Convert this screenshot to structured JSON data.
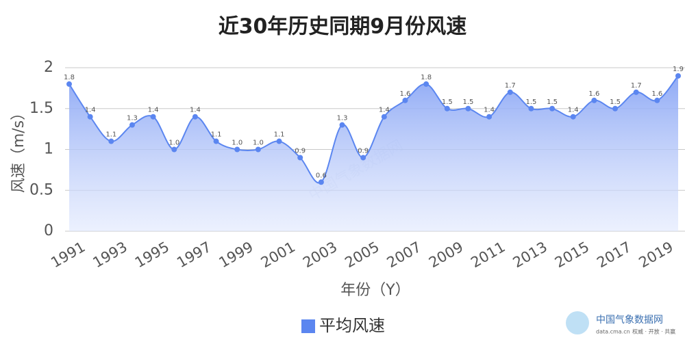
{
  "chart_data": {
    "type": "area-line",
    "title": "近30年历史同期9月份风速",
    "x_label": "年份（Y）",
    "y_label": "风速（m/s）",
    "categories": [
      "1991",
      null,
      "1993",
      null,
      "1995",
      null,
      "1997",
      null,
      "1999",
      null,
      "2001",
      null,
      "2003",
      null,
      "2005",
      null,
      "2007",
      null,
      "2009",
      null,
      "2011",
      null,
      "2013",
      null,
      "2015",
      null,
      "2017",
      null,
      "2019",
      null
    ],
    "series": [
      {
        "name": "平均风速",
        "color": "#5b86f0",
        "values": [
          1.8,
          1.4,
          1.1,
          1.3,
          1.4,
          1.0,
          1.4,
          1.1,
          1.0,
          1.0,
          1.1,
          0.9,
          0.6,
          1.3,
          0.9,
          1.4,
          1.6,
          1.8,
          1.5,
          1.5,
          1.4,
          1.7,
          1.5,
          1.5,
          1.4,
          1.6,
          1.5,
          1.7,
          1.6,
          1.9
        ],
        "value_labels": [
          "1.8",
          "1.4",
          "1.1",
          "1.3",
          "1.4",
          "1.0",
          "1.4",
          "1.1",
          "1.0",
          "1.0",
          "1.1",
          "0.9",
          "0.6",
          "1.3",
          "0.9",
          "1.4",
          "1.6",
          "1.8",
          "1.5",
          "1.5",
          "1.4",
          "1.7",
          "1.5",
          "1.5",
          "1.4",
          "1.6",
          "1.5",
          "1.7",
          "1.6",
          "1.9"
        ]
      }
    ],
    "ylim": [
      0,
      2
    ],
    "yticks": [
      0,
      0.5,
      1,
      1.5,
      2
    ],
    "grid": true,
    "watermark": {
      "name": "中国气象数据网",
      "site": "data.cma.cn",
      "slogan": "权威 · 开放 · 共赢"
    }
  }
}
